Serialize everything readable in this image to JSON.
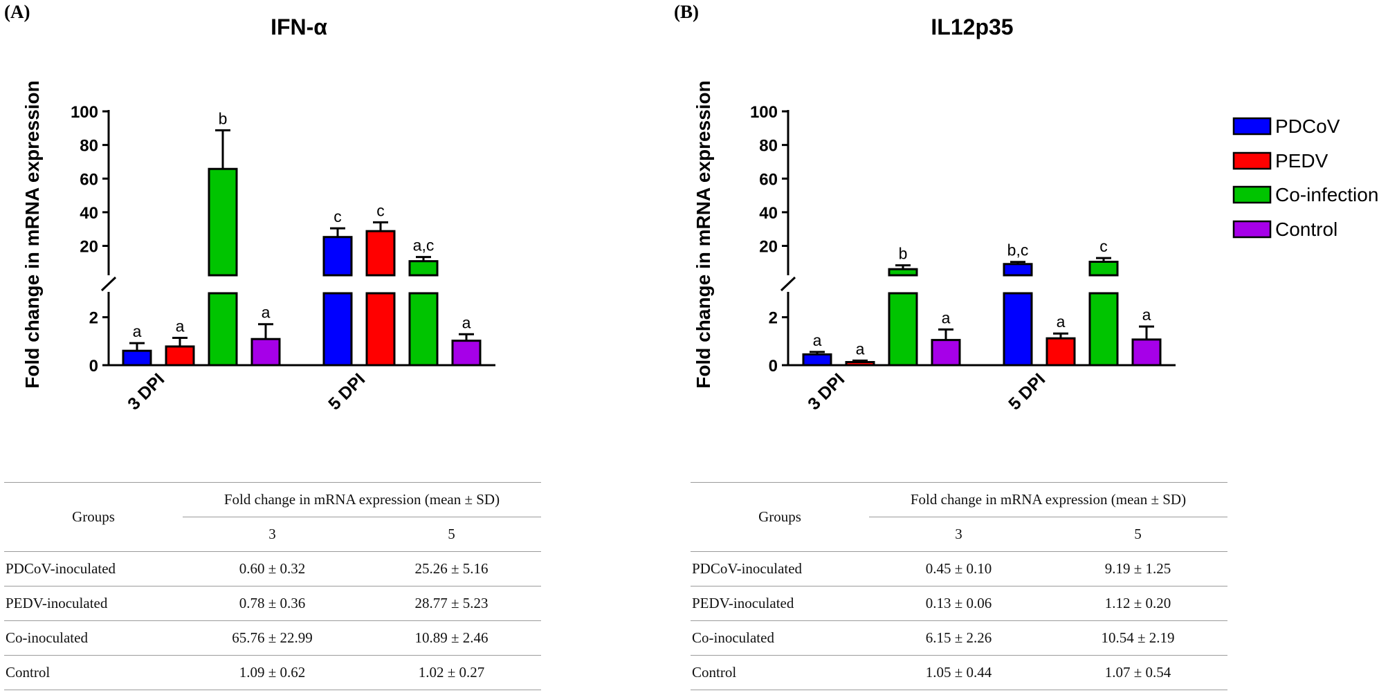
{
  "colors": {
    "PDCoV": "#0000ff",
    "PEDV": "#ff0000",
    "Co-infection": "#00c400",
    "Control": "#a600e8",
    "axis": "#000000"
  },
  "chart_data": [
    {
      "type": "bar",
      "panel": "(A)",
      "title": "IFN-α",
      "ylabel": "Fold change in mRNA expression",
      "xlabel": "",
      "categories": [
        "3 DPI",
        "5 DPI"
      ],
      "axis_break": true,
      "ylim_lower": [
        0,
        3
      ],
      "ylim_upper": [
        3,
        100
      ],
      "yticks_lower": [
        "0",
        "2"
      ],
      "yticks_upper": [
        "20",
        "40",
        "60",
        "80",
        "100"
      ],
      "series": [
        {
          "name": "PDCoV",
          "values": [
            0.6,
            25.26
          ],
          "sd": [
            0.32,
            5.16
          ],
          "sig": [
            "a",
            "c"
          ]
        },
        {
          "name": "PEDV",
          "values": [
            0.78,
            28.77
          ],
          "sd": [
            0.36,
            5.23
          ],
          "sig": [
            "a",
            "c"
          ]
        },
        {
          "name": "Co-infection",
          "values": [
            65.76,
            10.89
          ],
          "sd": [
            22.99,
            2.46
          ],
          "sig": [
            "b",
            "a,c"
          ]
        },
        {
          "name": "Control",
          "values": [
            1.09,
            1.02
          ],
          "sd": [
            0.62,
            0.27
          ],
          "sig": [
            "a",
            "a"
          ]
        }
      ]
    },
    {
      "type": "bar",
      "panel": "(B)",
      "title": "IL12p35",
      "ylabel": "Fold change in mRNA expression",
      "xlabel": "",
      "categories": [
        "3 DPI",
        "5 DPI"
      ],
      "axis_break": true,
      "ylim_lower": [
        0,
        3
      ],
      "ylim_upper": [
        3,
        100
      ],
      "yticks_lower": [
        "0",
        "2"
      ],
      "yticks_upper": [
        "20",
        "40",
        "60",
        "80",
        "100"
      ],
      "series": [
        {
          "name": "PDCoV",
          "values": [
            0.45,
            9.19
          ],
          "sd": [
            0.1,
            1.25
          ],
          "sig": [
            "a",
            "b,c"
          ]
        },
        {
          "name": "PEDV",
          "values": [
            0.13,
            1.12
          ],
          "sd": [
            0.06,
            0.2
          ],
          "sig": [
            "a",
            "a"
          ]
        },
        {
          "name": "Co-infection",
          "values": [
            6.15,
            10.54
          ],
          "sd": [
            2.26,
            2.19
          ],
          "sig": [
            "b",
            "c"
          ]
        },
        {
          "name": "Control",
          "values": [
            1.05,
            1.07
          ],
          "sd": [
            0.44,
            0.54
          ],
          "sig": [
            "a",
            "a"
          ]
        }
      ]
    }
  ],
  "legend": [
    "PDCoV",
    "PEDV",
    "Co-infection",
    "Control"
  ],
  "tables": [
    {
      "groups_header": "Groups",
      "span_header": "Fold change in mRNA expression (mean ± SD)",
      "col_headers": [
        "3",
        "5"
      ],
      "rows": [
        {
          "group": "PDCoV-inoculated",
          "v3": "0.60 ± 0.32",
          "v5": "25.26 ± 5.16"
        },
        {
          "group": "PEDV-inoculated",
          "v3": "0.78 ± 0.36",
          "v5": "28.77 ± 5.23"
        },
        {
          "group": "Co-inoculated",
          "v3": "65.76 ± 22.99",
          "v5": "10.89 ± 2.46"
        },
        {
          "group": "Control",
          "v3": "1.09 ± 0.62",
          "v5": "1.02 ± 0.27"
        }
      ]
    },
    {
      "groups_header": "Groups",
      "span_header": "Fold change in mRNA expression (mean ± SD)",
      "col_headers": [
        "3",
        "5"
      ],
      "rows": [
        {
          "group": "PDCoV-inoculated",
          "v3": "0.45 ± 0.10",
          "v5": "9.19 ± 1.25"
        },
        {
          "group": "PEDV-inoculated",
          "v3": "0.13 ± 0.06",
          "v5": "1.12 ± 0.20"
        },
        {
          "group": "Co-inoculated",
          "v3": "6.15 ± 2.26",
          "v5": "10.54 ± 2.19"
        },
        {
          "group": "Control",
          "v3": "1.05 ± 0.44",
          "v5": "1.07 ± 0.54"
        }
      ]
    }
  ]
}
